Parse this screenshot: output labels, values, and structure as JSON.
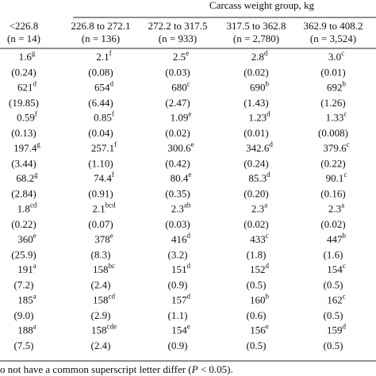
{
  "header": {
    "group_label": "Carcass weight group, kg"
  },
  "columns": [
    {
      "range": "<226.8",
      "n": "(n = 14)"
    },
    {
      "range": "226.8 to 272.1",
      "n": "(n = 136)"
    },
    {
      "range": "272.2 to 317.5",
      "n": "(n = 933)"
    },
    {
      "range": "317.5 to 362.8",
      "n": "(n = 2,780)"
    },
    {
      "range": "362.9 to 408.2",
      "n": "(n = 3,524)"
    }
  ],
  "rows": [
    {
      "values": [
        {
          "v": "1.6",
          "sup": "g"
        },
        {
          "v": "2.1",
          "sup": "f"
        },
        {
          "v": "2.5",
          "sup": "e"
        },
        {
          "v": "2.8",
          "sup": "d"
        },
        {
          "v": "3.0",
          "sup": "c"
        }
      ],
      "se": [
        "(0.24)",
        "(0.08)",
        "(0.03)",
        "(0.02)",
        "(0.01)"
      ]
    },
    {
      "values": [
        {
          "v": "621",
          "sup": "d"
        },
        {
          "v": "654",
          "sup": "d"
        },
        {
          "v": "680",
          "sup": "c"
        },
        {
          "v": "690",
          "sup": "b"
        },
        {
          "v": "692",
          "sup": "b"
        }
      ],
      "se": [
        "(19.85)",
        "(6.44)",
        "(2.47)",
        "(1.43)",
        "(1.26)"
      ]
    },
    {
      "values": [
        {
          "v": "0.59",
          "sup": "f"
        },
        {
          "v": "0.85",
          "sup": "f"
        },
        {
          "v": "1.09",
          "sup": "e"
        },
        {
          "v": "1.23",
          "sup": "d"
        },
        {
          "v": "1.33",
          "sup": "c"
        }
      ],
      "se": [
        "(0.13)",
        "(0.04)",
        "(0.02)",
        "(0.01)",
        "(0.008)"
      ]
    },
    {
      "values": [
        {
          "v": "197.4",
          "sup": "g"
        },
        {
          "v": "257.1",
          "sup": "f"
        },
        {
          "v": "300.6",
          "sup": "e"
        },
        {
          "v": "342.6",
          "sup": "d"
        },
        {
          "v": "379.6",
          "sup": "c"
        }
      ],
      "se": [
        "(3.44)",
        "(1.10)",
        "(0.42)",
        "(0.24)",
        "(0.22)"
      ]
    },
    {
      "values": [
        {
          "v": "68.2",
          "sup": "g"
        },
        {
          "v": "74.4",
          "sup": "f"
        },
        {
          "v": "80.4",
          "sup": "e"
        },
        {
          "v": "85.3",
          "sup": "d"
        },
        {
          "v": "90.1",
          "sup": "c"
        }
      ],
      "se": [
        "(2.84)",
        "(0.91)",
        "(0.35)",
        "(0.20)",
        "(0.16)"
      ]
    },
    {
      "values": [
        {
          "v": "1.8",
          "sup": "cd"
        },
        {
          "v": "2.1",
          "sup": "bcd"
        },
        {
          "v": "2.3",
          "sup": "ab"
        },
        {
          "v": "2.3",
          "sup": "a"
        },
        {
          "v": "2.3",
          "sup": "a"
        }
      ],
      "se": [
        "(0.22)",
        "(0.07)",
        "(0.03)",
        "(0.02)",
        "(0.02)"
      ]
    },
    {
      "values": [
        {
          "v": "360",
          "sup": "e"
        },
        {
          "v": "378",
          "sup": "e"
        },
        {
          "v": "416",
          "sup": "d"
        },
        {
          "v": "433",
          "sup": "c"
        },
        {
          "v": "447",
          "sup": "b"
        }
      ],
      "se": [
        "(25.9)",
        "(8.3)",
        "(3.2)",
        "(1.8)",
        "(1.6)"
      ]
    },
    {
      "values": [
        {
          "v": "191",
          "sup": "a"
        },
        {
          "v": "158",
          "sup": "bc"
        },
        {
          "v": "151",
          "sup": "d"
        },
        {
          "v": "152",
          "sup": "d"
        },
        {
          "v": "154",
          "sup": "c"
        }
      ],
      "se": [
        "(7.2)",
        "(2.4)",
        "(0.9)",
        "(0.5)",
        "(0.5)"
      ]
    },
    {
      "values": [
        {
          "v": "185",
          "sup": "a"
        },
        {
          "v": "158",
          "sup": "cd"
        },
        {
          "v": "157",
          "sup": "d"
        },
        {
          "v": "160",
          "sup": "b"
        },
        {
          "v": "162",
          "sup": "c"
        }
      ],
      "se": [
        "(9.0)",
        "(2.9)",
        "(1.1)",
        "(0.6)",
        "(0.5)"
      ]
    },
    {
      "values": [
        {
          "v": "188",
          "sup": "a"
        },
        {
          "v": "158",
          "sup": "cde"
        },
        {
          "v": "154",
          "sup": "e"
        },
        {
          "v": "156",
          "sup": "e"
        },
        {
          "v": "159",
          "sup": "d"
        }
      ],
      "se": [
        "(7.5)",
        "(2.4)",
        "(0.9)",
        "(0.5)",
        "(0.5)"
      ]
    }
  ],
  "footnote": {
    "before": "o not have a common superscript letter differ (",
    "italic": "P",
    "after": " < 0.05)."
  }
}
